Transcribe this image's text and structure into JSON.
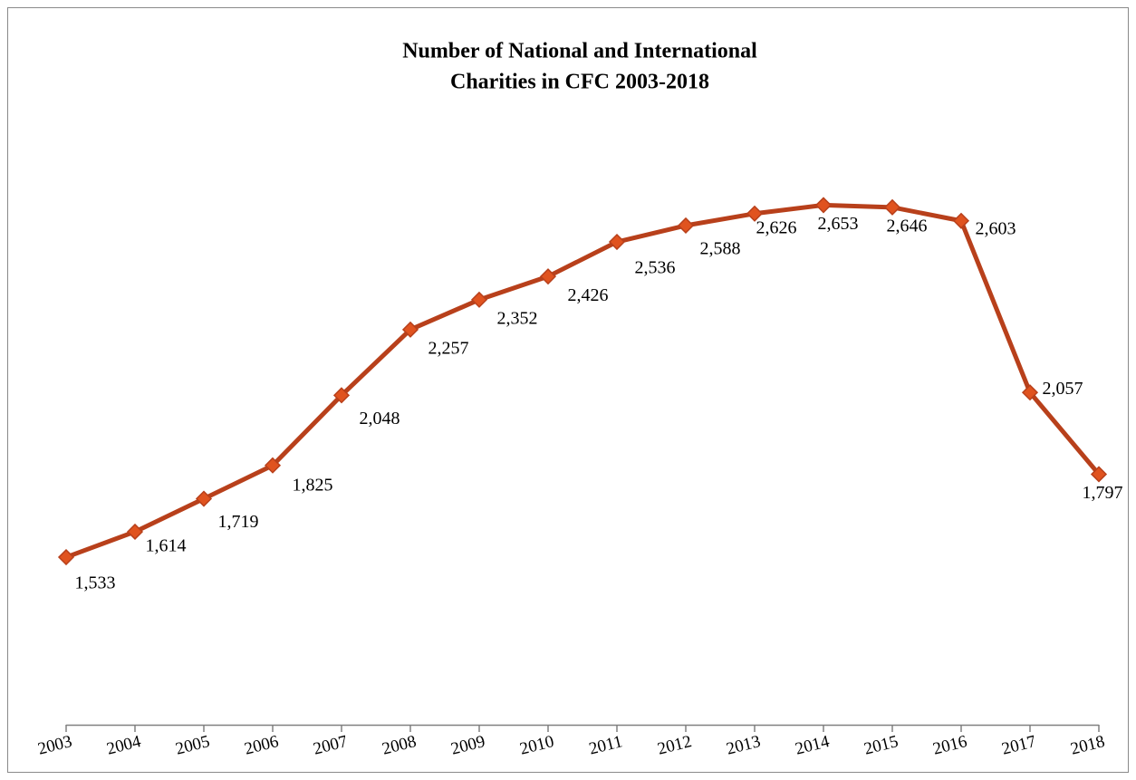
{
  "chart_data": {
    "type": "line",
    "title": [
      "Number of National and International",
      "Charities in CFC 2003-2018"
    ],
    "categories": [
      "2003",
      "2004",
      "2005",
      "2006",
      "2007",
      "2008",
      "2009",
      "2010",
      "2011",
      "2012",
      "2013",
      "2014",
      "2015",
      "2016",
      "2017",
      "2018"
    ],
    "series": [
      {
        "color": "#b8401b",
        "marker_color": "#e0531f",
        "values": [
          1533,
          1614,
          1719,
          1825,
          2048,
          2257,
          2352,
          2426,
          2536,
          2588,
          2626,
          2653,
          2646,
          2603,
          2057,
          1797
        ],
        "value_labels": [
          "1,533",
          "1,614",
          "1,719",
          "1,825",
          "2,048",
          "2,257",
          "2,352",
          "2,426",
          "2,536",
          "2,588",
          "2,626",
          "2,653",
          "2,646",
          "2,603",
          "2,057",
          "1,797"
        ]
      }
    ],
    "ylim": [
      1000,
      3000
    ]
  }
}
